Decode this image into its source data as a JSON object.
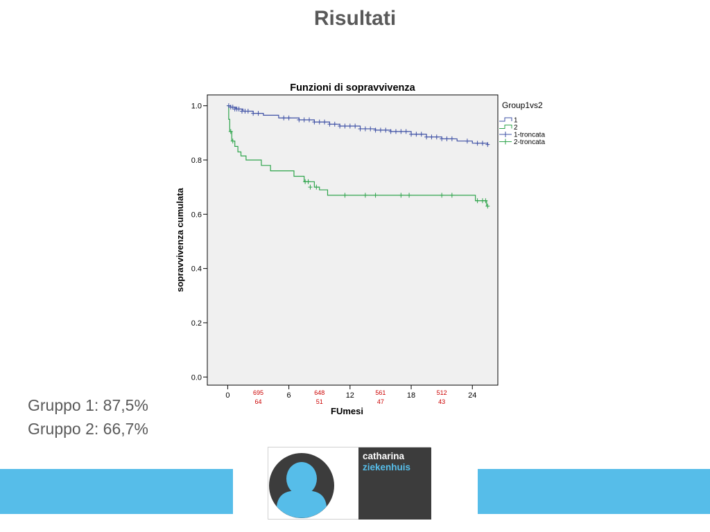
{
  "slide": {
    "title": "Risultati",
    "summary": [
      "Gruppo 1: 87,5%",
      "Gruppo 2: 66,7%"
    ]
  },
  "logo": {
    "line1": "catharina",
    "line2": "ziekenhuis",
    "colors": {
      "blue": "#56bde9",
      "dark": "#3c3c3c"
    }
  },
  "colors": {
    "group1": "#3e50a5",
    "group2": "#2ea44b",
    "plot_bg": "#f0f0f0",
    "risk_numbers": "#cc0000",
    "band": "#56bde9"
  },
  "chart_data": {
    "type": "line",
    "step": true,
    "title": "Funzioni di sopravvivenza",
    "xlabel": "FUmesi",
    "ylabel": "sopravvivenza cumulata",
    "xlim": [
      -2,
      26.5
    ],
    "ylim": [
      -0.03,
      1.04
    ],
    "xticks": [
      0,
      6,
      12,
      18,
      24
    ],
    "yticks": [
      0.0,
      0.2,
      0.4,
      0.6,
      0.8,
      1.0
    ],
    "ytick_labels": [
      "0.0",
      "0.2",
      "0.4",
      "0.6",
      "0.8",
      "1.0"
    ],
    "legend": {
      "title": "Group1vs2",
      "position": "right",
      "entries": [
        "1",
        "2",
        "1-troncata",
        "2-troncata"
      ]
    },
    "series": [
      {
        "name": "1",
        "x": [
          0,
          0.3,
          0.8,
          1.5,
          2.5,
          3.5,
          5,
          7,
          8.5,
          10,
          11,
          13,
          14.5,
          16,
          18,
          19.5,
          21,
          22.5,
          24,
          25.5
        ],
        "y": [
          1.0,
          0.995,
          0.988,
          0.98,
          0.972,
          0.965,
          0.955,
          0.948,
          0.94,
          0.932,
          0.925,
          0.915,
          0.91,
          0.905,
          0.895,
          0.885,
          0.878,
          0.87,
          0.862,
          0.857
        ],
        "end_x": 25.6
      },
      {
        "name": "2",
        "x": [
          0,
          0.1,
          0.2,
          0.4,
          0.7,
          1.0,
          1.3,
          1.8,
          3.3,
          4.2,
          6.5,
          7.5,
          8.5,
          9.0,
          9.8,
          24.3,
          25.4
        ],
        "y": [
          1.0,
          0.95,
          0.905,
          0.87,
          0.85,
          0.83,
          0.815,
          0.8,
          0.78,
          0.76,
          0.74,
          0.72,
          0.7,
          0.69,
          0.67,
          0.65,
          0.63
        ],
        "end_x": 25.6
      }
    ],
    "censored": [
      {
        "name": "1-troncata",
        "x": [
          0.1,
          0.3,
          0.5,
          0.7,
          0.9,
          1.1,
          1.4,
          1.7,
          2.0,
          2.5,
          3.0,
          5.5,
          6.0,
          7.0,
          7.5,
          8.0,
          8.5,
          9.0,
          9.5,
          10.0,
          10.5,
          11.0,
          11.5,
          12.0,
          12.5,
          13.0,
          13.5,
          14.0,
          14.5,
          15.0,
          15.5,
          16.0,
          16.5,
          17.0,
          17.5,
          18.0,
          18.5,
          19.0,
          19.5,
          20.0,
          20.5,
          21.0,
          21.5,
          22.0,
          23.5,
          24.5,
          25.0,
          25.5
        ],
        "y": [
          1.0,
          0.995,
          0.995,
          0.988,
          0.988,
          0.988,
          0.98,
          0.98,
          0.98,
          0.972,
          0.972,
          0.955,
          0.955,
          0.948,
          0.948,
          0.948,
          0.94,
          0.94,
          0.94,
          0.932,
          0.932,
          0.925,
          0.925,
          0.925,
          0.925,
          0.915,
          0.915,
          0.915,
          0.91,
          0.91,
          0.91,
          0.905,
          0.905,
          0.905,
          0.905,
          0.895,
          0.895,
          0.895,
          0.885,
          0.885,
          0.885,
          0.878,
          0.878,
          0.878,
          0.87,
          0.862,
          0.862,
          0.857
        ]
      },
      {
        "name": "2-troncata",
        "x": [
          0.3,
          0.5,
          7.6,
          7.9,
          8.1,
          8.7,
          11.5,
          13.5,
          14.5,
          17.0,
          17.8,
          21.0,
          22.0,
          24.5,
          25.0,
          25.3,
          25.5
        ],
        "y": [
          0.905,
          0.87,
          0.72,
          0.72,
          0.7,
          0.7,
          0.67,
          0.67,
          0.67,
          0.67,
          0.67,
          0.67,
          0.67,
          0.65,
          0.65,
          0.65,
          0.63
        ]
      }
    ],
    "risk_table": [
      {
        "x": 3,
        "group1": "695",
        "group2": "64"
      },
      {
        "x": 9,
        "group1": "648",
        "group2": "51"
      },
      {
        "x": 15,
        "group1": "561",
        "group2": "47"
      },
      {
        "x": 21,
        "group1": "512",
        "group2": "43"
      }
    ]
  }
}
